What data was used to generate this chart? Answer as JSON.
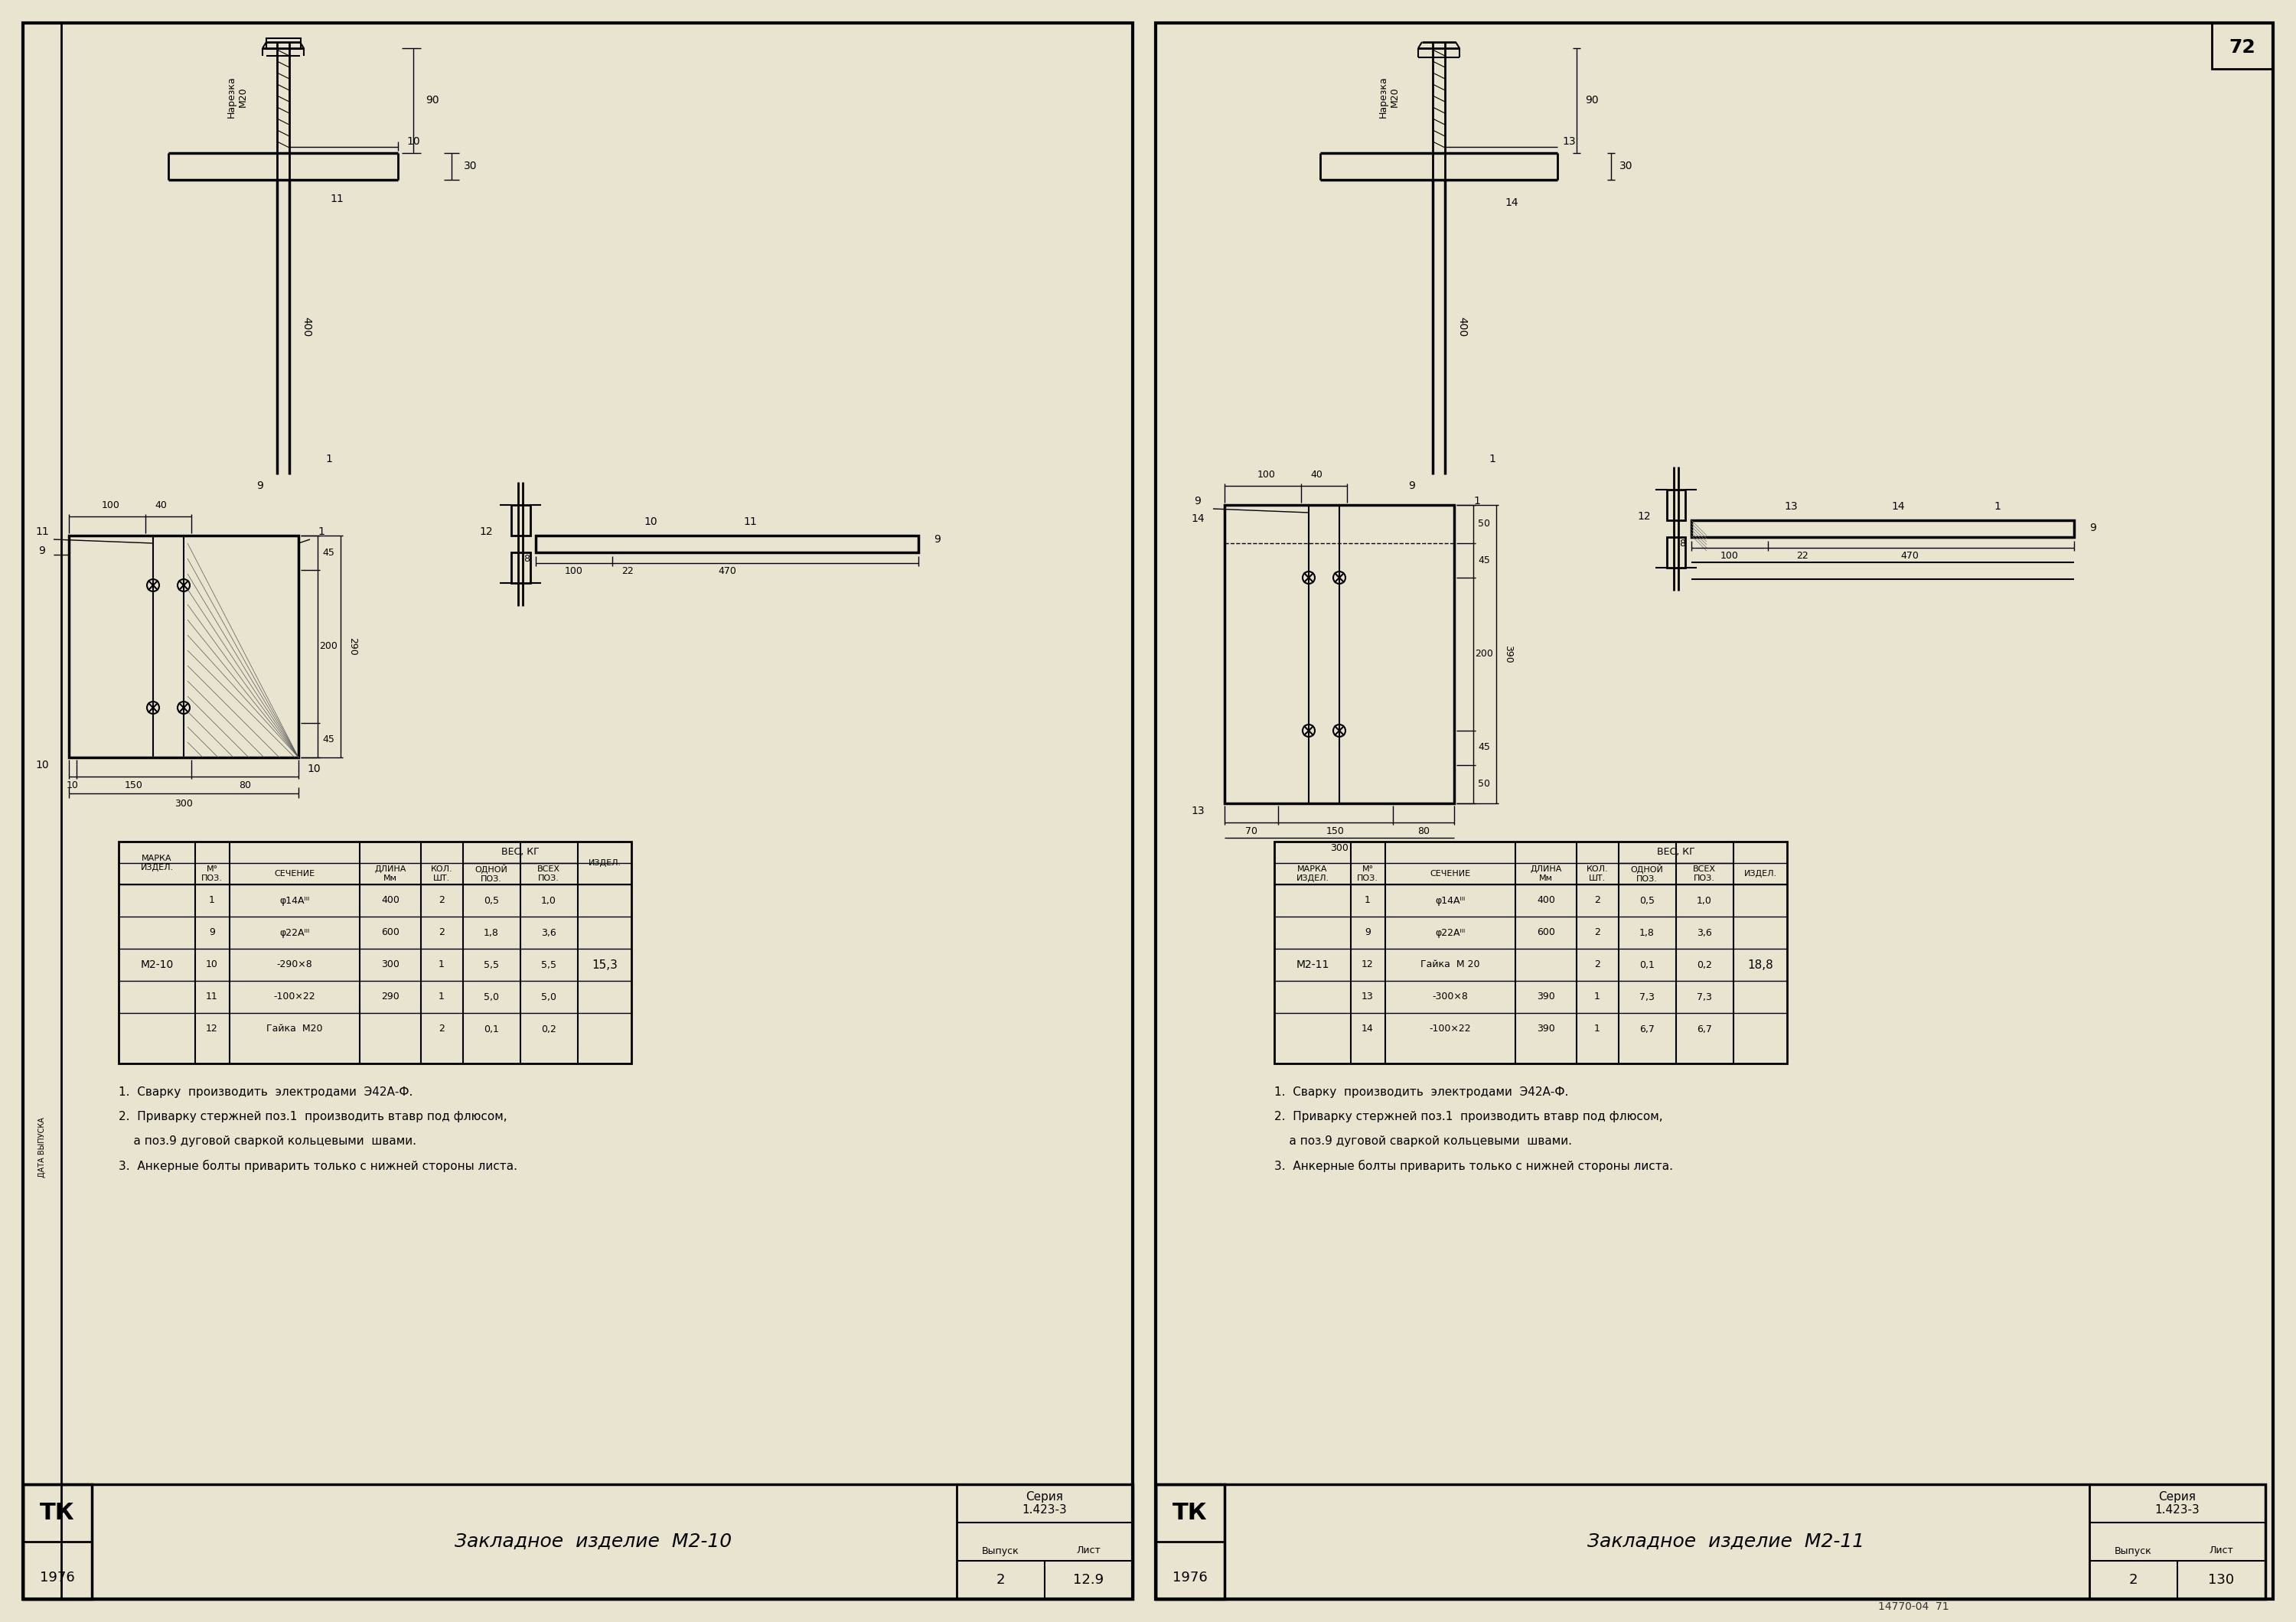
{
  "bg_color": "#e8e4d0",
  "line_color": "#000000",
  "title_left": "Закладное  изделие  М2-10",
  "title_right": "Закладное  изделие  М2-11",
  "series": "1.423-3",
  "year": "1976",
  "vypusk": "2",
  "list_left": "12.9",
  "list_right": "130",
  "page_num": "72",
  "notes_left": [
    "1.  Сварку  производить  электродами  Э42А-Ф.",
    "2.  Приварку стержней поз.1  производить втавр под флюсом,",
    "    а поз.9 дуговой сваркой кольцевыми  швами.",
    "3.  Анкерные болты приварить только с нижней стороны листа."
  ],
  "notes_right": [
    "1.  Сварку  производить  электродами  Э42А-Ф.",
    "2.  Приварку стержней поз.1  производить втавр под флюсом,",
    "    а поз.9 дуговой сваркой кольцевыми  швами.",
    "3.  Анкерные болты приварить только с нижней стороны листа."
  ],
  "table_left": {
    "marka": "М2-10",
    "total_weight": "15,3",
    "rows": [
      [
        "1",
        "φ14Aᴵᴵᴵ",
        "400",
        "2",
        "0,5",
        "1,0"
      ],
      [
        "9",
        "φ22Aᴵᴵᴵ",
        "600",
        "2",
        "1,8",
        "3,6"
      ],
      [
        "10",
        "-290×8",
        "300",
        "1",
        "5,5",
        "5,5"
      ],
      [
        "11",
        "-100×22",
        "290",
        "1",
        "5,0",
        "5,0"
      ],
      [
        "12",
        "Гайка  M20",
        "",
        "2",
        "0,1",
        "0,2"
      ]
    ]
  },
  "table_right": {
    "marka": "М2-11",
    "total_weight": "18,8",
    "rows": [
      [
        "1",
        "φ14Aᴵᴵᴵ",
        "400",
        "2",
        "0,5",
        "1,0"
      ],
      [
        "9",
        "φ22Aᴵᴵᴵ",
        "600",
        "2",
        "1,8",
        "3,6"
      ],
      [
        "12",
        "Гайка  M 20",
        "",
        "2",
        "0,1",
        "0,2"
      ],
      [
        "13",
        "-300×8",
        "390",
        "1",
        "7,3",
        "7,3"
      ],
      [
        "14",
        "-100×22",
        "390",
        "1",
        "6,7",
        "6,7"
      ]
    ]
  }
}
